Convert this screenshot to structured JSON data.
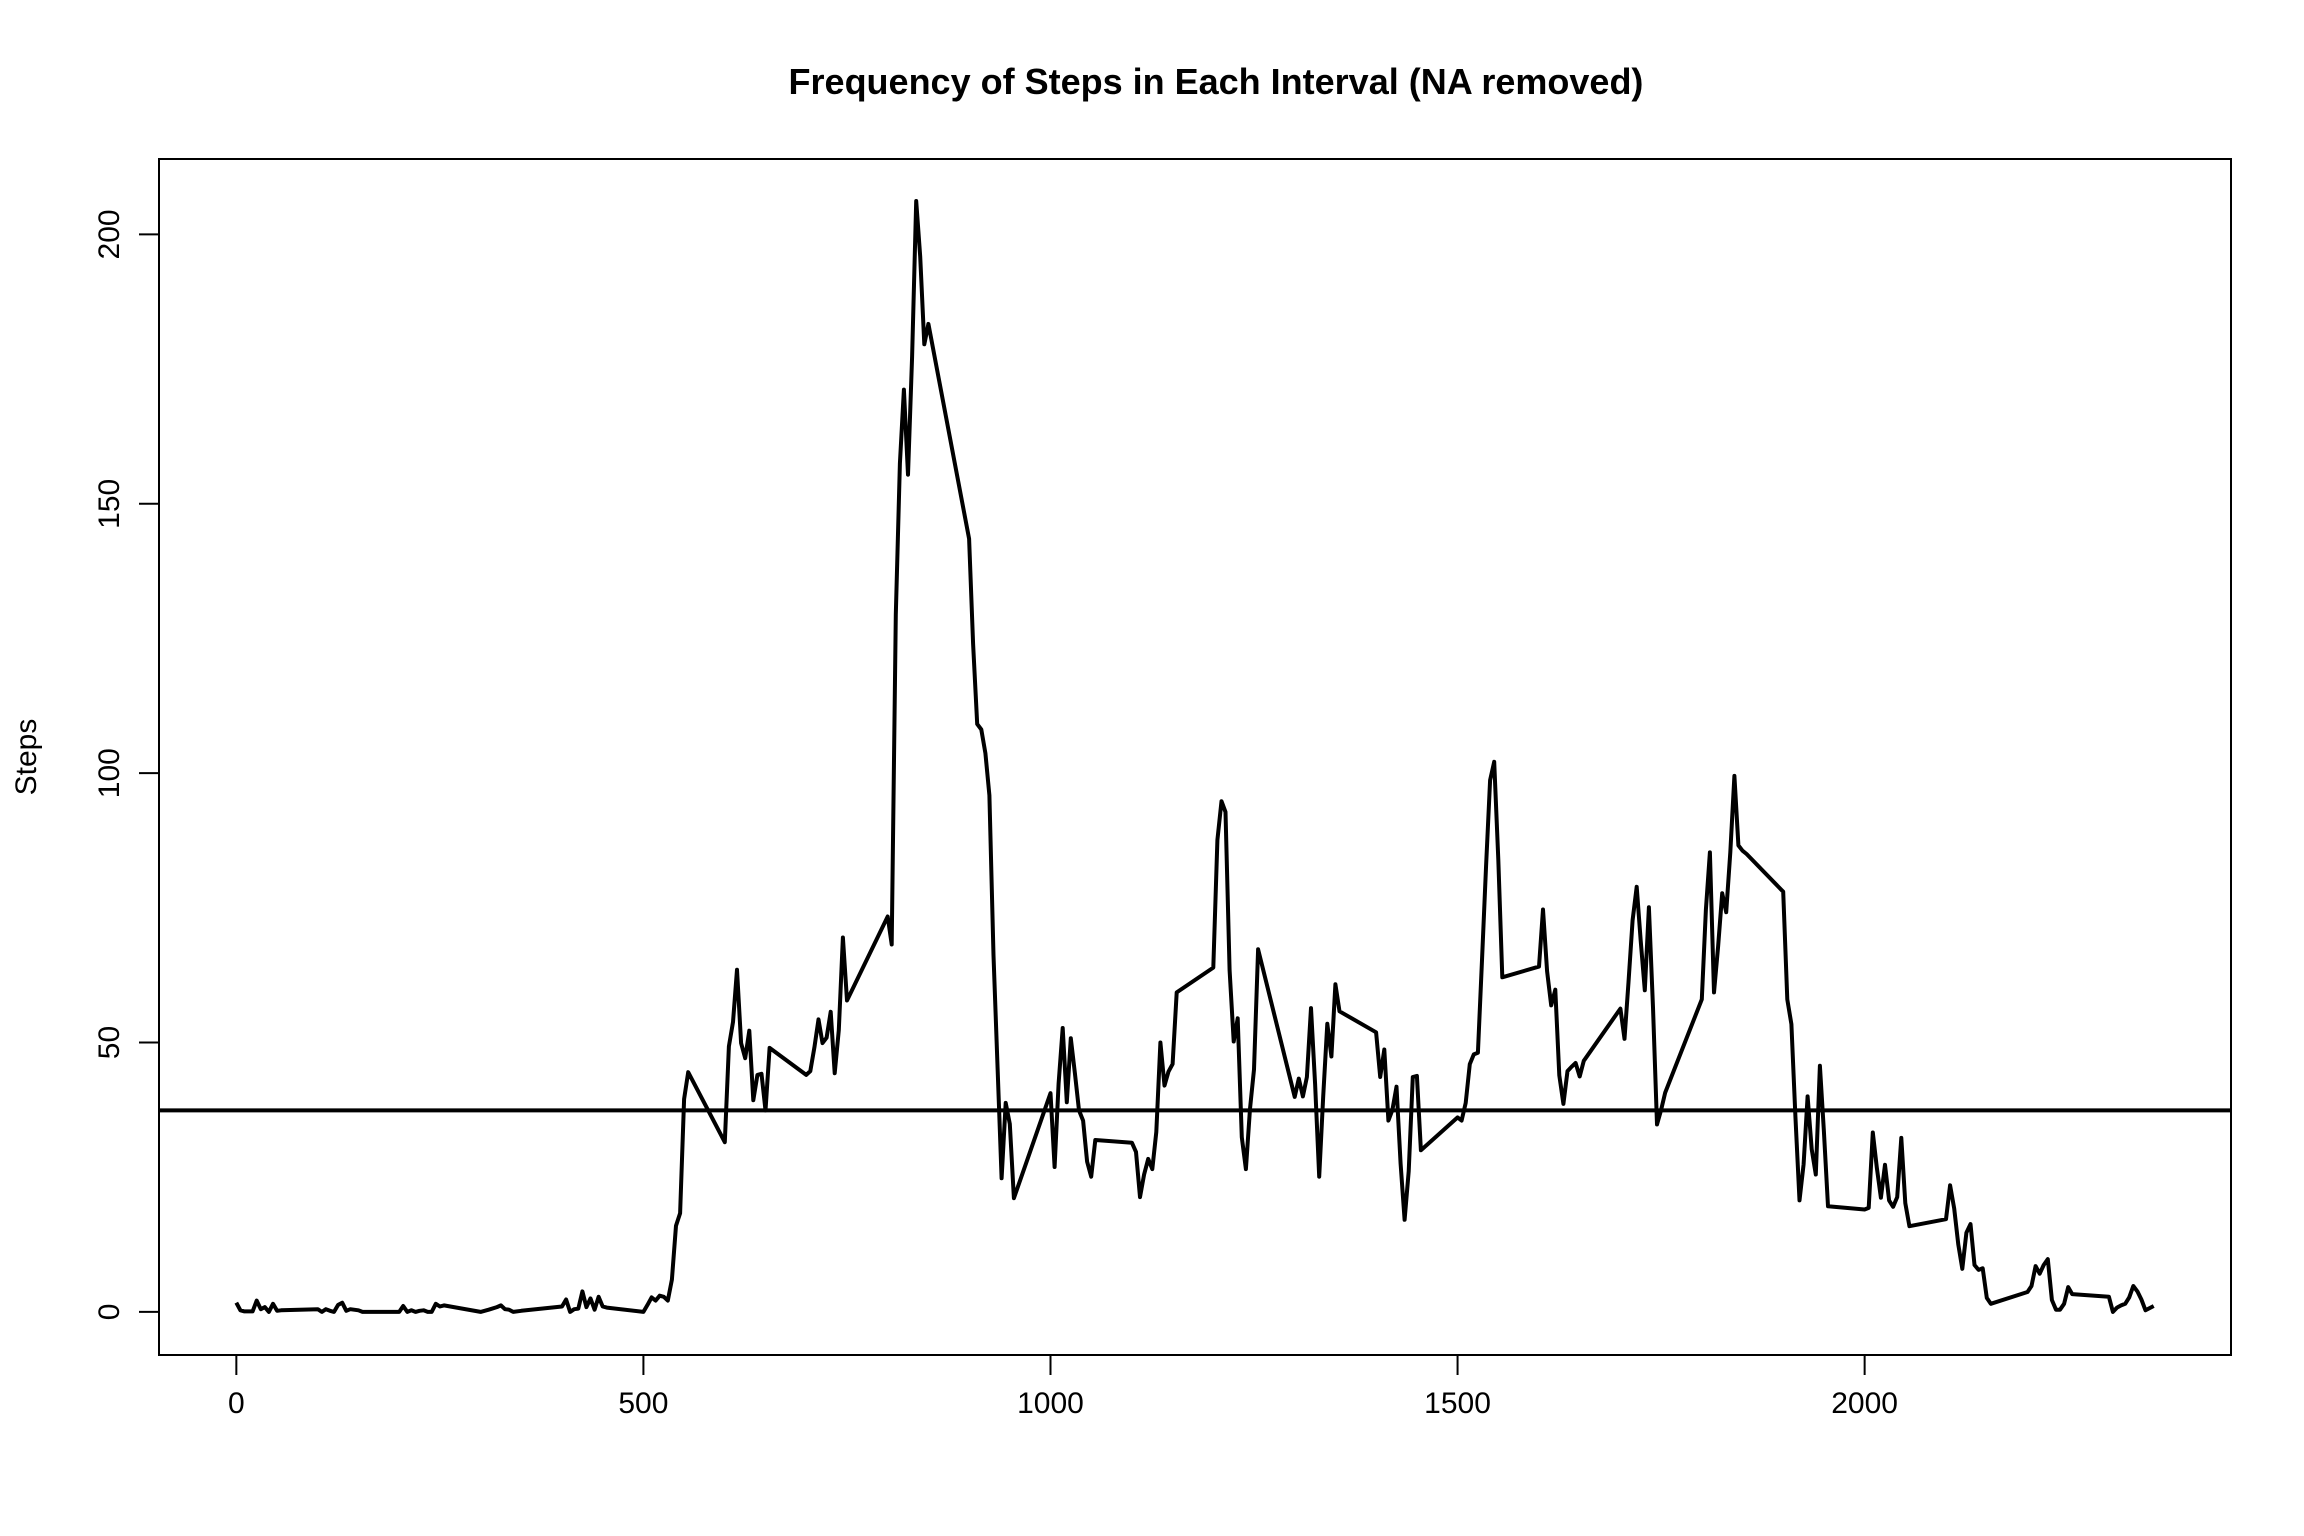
{
  "chart_data": {
    "type": "line",
    "title": "Frequency of Steps in Each Interval (NA removed)",
    "xlabel": "",
    "ylabel": "Steps",
    "xlim": [
      -95,
      2450
    ],
    "ylim": [
      -8,
      214
    ],
    "x_ticks": [
      0,
      500,
      1000,
      1500,
      2000
    ],
    "y_ticks": [
      0,
      50,
      100,
      150,
      200
    ],
    "x_tick_labels": [
      "0",
      "500",
      "1000",
      "1500",
      "2000"
    ],
    "y_tick_labels": [
      "0",
      "50",
      "100",
      "150",
      "200"
    ],
    "grid": false,
    "legend": "none",
    "colors": {
      "line": "#000000",
      "reference_line": "#000000",
      "background": "#ffffff"
    },
    "reference_line": {
      "orientation": "horizontal",
      "y": 37.4
    },
    "series": [
      {
        "x": [
          0,
          5,
          10,
          20,
          25,
          30,
          35,
          40,
          45,
          50,
          55,
          100,
          105,
          110,
          115,
          120,
          125,
          130,
          135,
          140,
          150,
          155,
          200,
          205,
          210,
          215,
          220,
          225,
          230,
          235,
          240,
          245,
          250,
          255,
          300,
          310,
          320,
          325,
          330,
          335,
          340,
          350,
          400,
          405,
          410,
          415,
          420,
          425,
          430,
          435,
          440,
          445,
          450,
          455,
          500,
          505,
          510,
          515,
          520,
          525,
          530,
          535,
          540,
          545,
          550,
          555,
          600,
          605,
          610,
          615,
          620,
          625,
          630,
          635,
          640,
          645,
          650,
          655,
          700,
          705,
          710,
          715,
          720,
          725,
          730,
          735,
          740,
          745,
          750,
          800,
          805,
          810,
          815,
          820,
          825,
          830,
          835,
          840,
          845,
          850,
          900,
          905,
          910,
          915,
          920,
          925,
          930,
          935,
          940,
          945,
          950,
          955,
          1000,
          1005,
          1010,
          1015,
          1020,
          1025,
          1030,
          1035,
          1040,
          1045,
          1050,
          1055,
          1100,
          1105,
          1110,
          1115,
          1120,
          1125,
          1130,
          1135,
          1140,
          1145,
          1150,
          1155,
          1200,
          1205,
          1210,
          1215,
          1220,
          1225,
          1230,
          1235,
          1240,
          1245,
          1250,
          1255,
          1300,
          1305,
          1310,
          1315,
          1320,
          1325,
          1330,
          1335,
          1340,
          1345,
          1350,
          1355,
          1400,
          1405,
          1410,
          1415,
          1420,
          1425,
          1430,
          1435,
          1440,
          1445,
          1450,
          1455,
          1500,
          1505,
          1510,
          1515,
          1520,
          1525,
          1530,
          1535,
          1540,
          1545,
          1550,
          1555,
          1600,
          1605,
          1610,
          1615,
          1620,
          1625,
          1630,
          1635,
          1640,
          1645,
          1650,
          1655,
          1700,
          1705,
          1710,
          1715,
          1720,
          1725,
          1730,
          1735,
          1740,
          1745,
          1750,
          1755,
          1800,
          1805,
          1810,
          1815,
          1820,
          1825,
          1830,
          1835,
          1840,
          1845,
          1850,
          1855,
          1900,
          1905,
          1910,
          1915,
          1920,
          1925,
          1930,
          1935,
          1940,
          1945,
          1950,
          1955,
          2000,
          2005,
          2010,
          2015,
          2020,
          2025,
          2030,
          2035,
          2040,
          2045,
          2050,
          2055,
          2100,
          2105,
          2110,
          2115,
          2120,
          2125,
          2130,
          2135,
          2140,
          2145,
          2150,
          2155,
          2200,
          2205,
          2210,
          2215,
          2220,
          2225,
          2230,
          2235,
          2240,
          2245,
          2250,
          2255,
          2300,
          2305,
          2310,
          2315,
          2320,
          2325,
          2330,
          2335,
          2340,
          2345,
          2350,
          2355
        ],
        "y": [
          1.7,
          0.3,
          0.1,
          0.1,
          2.1,
          0.5,
          0.9,
          0.0,
          1.5,
          0.2,
          0.3,
          0.5,
          0.0,
          0.5,
          0.2,
          0.0,
          1.3,
          1.7,
          0.2,
          0.5,
          0.3,
          0.0,
          0.0,
          1.1,
          0.0,
          0.3,
          0.0,
          0.2,
          0.3,
          0.0,
          0.0,
          1.5,
          1.0,
          1.2,
          0.0,
          0.4,
          0.9,
          1.2,
          0.5,
          0.4,
          0.0,
          0.2,
          1.0,
          2.3,
          0.0,
          0.5,
          0.6,
          3.8,
          0.9,
          2.5,
          0.4,
          2.8,
          1.0,
          0.8,
          0.0,
          1.3,
          2.7,
          2.1,
          3.0,
          2.8,
          2.1,
          6.0,
          16.0,
          18.3,
          39.5,
          44.5,
          31.5,
          49.3,
          53.8,
          63.5,
          49.9,
          47.1,
          52.2,
          39.3,
          44.0,
          44.2,
          37.4,
          49.0,
          44.0,
          44.7,
          49.1,
          54.3,
          49.9,
          50.9,
          55.7,
          44.3,
          52.3,
          69.5,
          57.8,
          73.4,
          68.2,
          129.4,
          157.5,
          171.2,
          155.4,
          177.3,
          206.2,
          195.9,
          179.6,
          183.4,
          143.5,
          124.0,
          109.1,
          108.1,
          103.7,
          95.9,
          66.2,
          45.2,
          24.8,
          38.8,
          34.9,
          21.1,
          40.6,
          26.9,
          42.4,
          52.7,
          38.9,
          50.8,
          44.3,
          37.4,
          35.5,
          27.9,
          25.1,
          31.9,
          31.4,
          29.7,
          21.3,
          25.5,
          28.4,
          26.5,
          33.4,
          50.0,
          42.0,
          44.6,
          46.0,
          59.3,
          63.9,
          87.6,
          94.8,
          92.8,
          63.4,
          50.2,
          54.5,
          32.4,
          26.5,
          37.7,
          45.0,
          67.3,
          39.9,
          43.3,
          40.0,
          43.6,
          56.4,
          42.3,
          25.1,
          40.0,
          53.5,
          47.4,
          60.8,
          55.8,
          51.9,
          43.6,
          48.7,
          35.5,
          37.5,
          41.8,
          27.5,
          17.1,
          26.1,
          43.6,
          43.8,
          30.0,
          36.1,
          35.5,
          38.8,
          46.0,
          47.8,
          48.1,
          65.3,
          82.9,
          98.7,
          102.1,
          84.0,
          62.1,
          64.1,
          74.7,
          63.2,
          56.9,
          59.8,
          43.9,
          38.6,
          44.7,
          45.5,
          46.2,
          43.7,
          46.6,
          56.3,
          50.7,
          61.2,
          72.7,
          78.9,
          68.9,
          59.7,
          75.1,
          56.5,
          34.8,
          37.5,
          40.7,
          58.0,
          74.7,
          85.3,
          59.3,
          67.8,
          77.7,
          74.2,
          85.3,
          99.5,
          86.6,
          85.6,
          85.0,
          78.0,
          58.0,
          53.4,
          36.3,
          20.7,
          27.4,
          40.0,
          30.2,
          25.5,
          45.7,
          33.5,
          19.6,
          19.0,
          19.3,
          33.3,
          26.8,
          21.2,
          27.3,
          20.7,
          19.5,
          21.3,
          32.3,
          20.2,
          15.9,
          17.2,
          23.5,
          19.2,
          12.5,
          8.0,
          14.7,
          16.3,
          8.7,
          7.8,
          8.1,
          2.6,
          1.5,
          3.7,
          4.8,
          8.5,
          7.1,
          8.7,
          9.8,
          2.2,
          0.4,
          0.4,
          1.5,
          4.6,
          3.3,
          2.8,
          0.0,
          0.8,
          1.2,
          1.5,
          2.7,
          4.8,
          3.8,
          2.3,
          0.3,
          0.7,
          1.1
        ]
      }
    ]
  }
}
